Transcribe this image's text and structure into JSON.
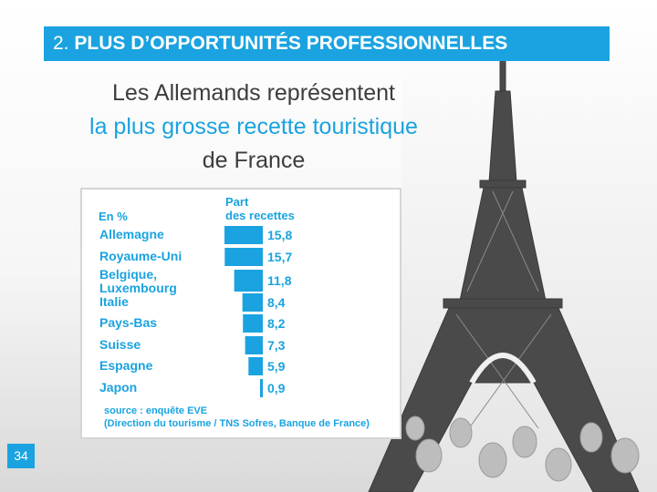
{
  "header": {
    "number": "2.",
    "title": "PLUS D’OPPORTUNITÉS PROFESSIONNELLES"
  },
  "headline": {
    "line1": "Les Allemands représentent",
    "line2": "la plus grosse recette touristique",
    "line3": "de France"
  },
  "colors": {
    "accent": "#1aa3e0",
    "text_dark": "#3d3d3d"
  },
  "chart_data": {
    "type": "bar",
    "orientation": "horizontal",
    "unit_label": "En %",
    "value_header": [
      "Part",
      "des recettes"
    ],
    "categories": [
      [
        "Allemagne"
      ],
      [
        "Royaume-Uni"
      ],
      [
        "Belgique,",
        "Luxembourg"
      ],
      [
        "Italie"
      ],
      [
        "Pays-Bas"
      ],
      [
        "Suisse"
      ],
      [
        "Espagne"
      ],
      [
        "Japon"
      ]
    ],
    "values": [
      15.8,
      15.7,
      11.8,
      8.4,
      8.2,
      7.3,
      5.9,
      0.9
    ],
    "value_labels": [
      "15,8",
      "15,7",
      "11,8",
      "8,4",
      "8,2",
      "7,3",
      "5,9",
      "0,9"
    ],
    "xlim": [
      0,
      15.8
    ],
    "grid": false,
    "source": [
      "source : enquête EVE",
      "(Direction du tourisme / TNS Sofres, Banque de France)"
    ]
  },
  "page_number": "34"
}
